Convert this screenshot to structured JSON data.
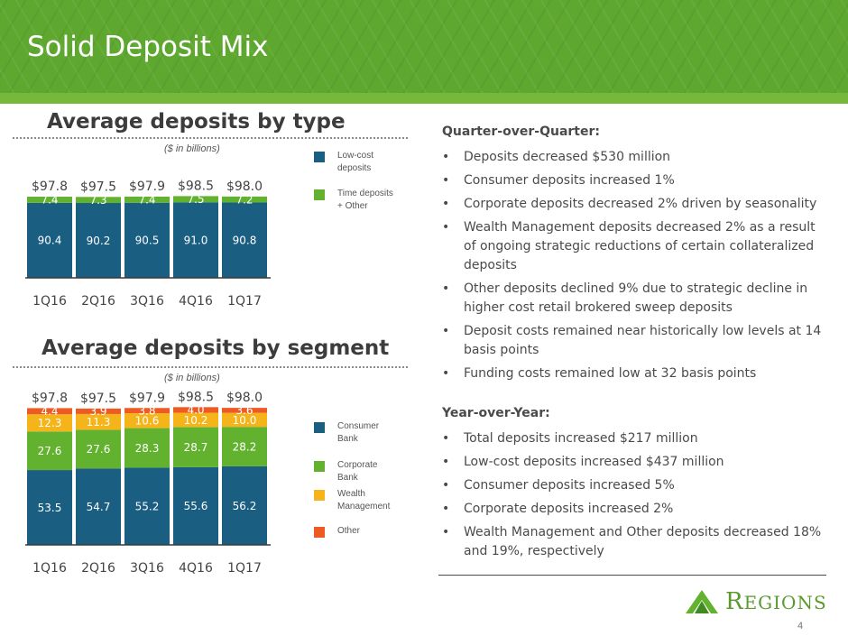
{
  "page": {
    "title": "Solid Deposit Mix",
    "page_number": "4",
    "logo_text": "REGIONS"
  },
  "colors": {
    "blue": "#1a5e82",
    "green": "#63b22f",
    "yellow": "#f5b51a",
    "orange": "#ee5a24",
    "header": "#5ea82f"
  },
  "chart_data": [
    {
      "type": "bar",
      "title": "Average deposits by type",
      "subtitle": "($ in billions)",
      "categories": [
        "1Q16",
        "2Q16",
        "3Q16",
        "4Q16",
        "1Q17"
      ],
      "totals": [
        "$97.8",
        "$97.5",
        "$97.9",
        "$98.5",
        "$98.0"
      ],
      "series": [
        {
          "name": "Low-cost deposits",
          "values": [
            90.4,
            90.2,
            90.5,
            91.0,
            90.8
          ]
        },
        {
          "name": "Time deposits + Other",
          "values": [
            7.4,
            7.3,
            7.4,
            7.5,
            7.2
          ]
        }
      ],
      "stacked": true,
      "legend": "right"
    },
    {
      "type": "bar",
      "title": "Average deposits by segment",
      "subtitle": "($ in billions)",
      "categories": [
        "1Q16",
        "2Q16",
        "3Q16",
        "4Q16",
        "1Q17"
      ],
      "totals": [
        "$97.8",
        "$97.5",
        "$97.9",
        "$98.5",
        "$98.0"
      ],
      "series": [
        {
          "name": "Consumer Bank",
          "values": [
            53.5,
            54.7,
            55.2,
            55.6,
            56.2
          ]
        },
        {
          "name": "Corporate Bank",
          "values": [
            27.6,
            27.6,
            28.3,
            28.7,
            28.2
          ]
        },
        {
          "name": "Wealth Management",
          "values": [
            12.3,
            11.3,
            10.6,
            10.2,
            10.0
          ]
        },
        {
          "name": "Other",
          "values": [
            4.4,
            3.9,
            3.8,
            4.0,
            3.6
          ]
        }
      ],
      "stacked": true,
      "legend": "right"
    }
  ],
  "qoq": {
    "heading": "Quarter-over-Quarter:",
    "bullets": [
      "Deposits decreased  $530 million",
      "Consumer deposits increased 1%",
      "Corporate deposits decreased 2% driven by seasonality",
      "Wealth Management deposits decreased 2% as a result of ongoing strategic reductions of certain collateralized deposits",
      "Other deposits declined 9% due to strategic decline in higher cost retail brokered sweep deposits",
      "Deposit costs remained near historically low levels at 14 basis points",
      "Funding costs remained low at 32 basis points"
    ]
  },
  "yoy": {
    "heading": "Year-over-Year:",
    "bullets": [
      "Total deposits increased $217 million",
      "Low-cost deposits increased $437 million",
      "Consumer deposits increased 5%",
      "Corporate deposits increased 2%",
      "Wealth Management and Other deposits decreased 18% and 19%, respectively"
    ]
  }
}
